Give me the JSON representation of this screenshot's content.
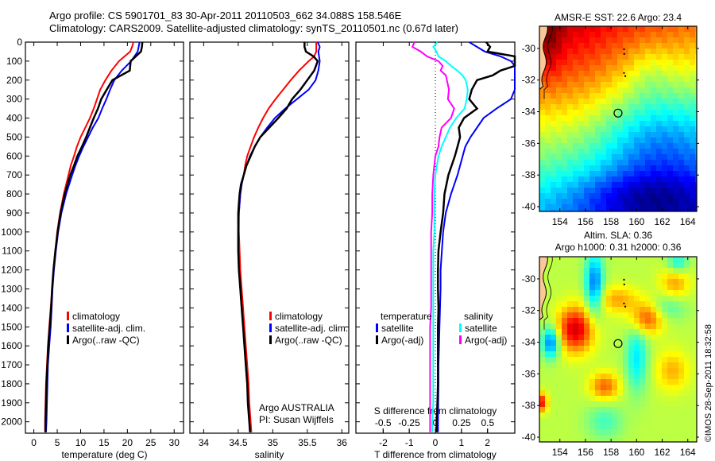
{
  "header": {
    "line1": "Argo profile: CS 5901701_83 30-Apr-2011 20110503_662 34.088S 158.546E",
    "line2": "Climatology: CARS2009. Satellite-adjusted climatology: synTS_20110501.nc (0.67d later)"
  },
  "colors": {
    "climatology": "#ff0000",
    "satellite": "#0000ff",
    "argo": "#000000",
    "sal_satellite": "#00ffff",
    "sal_argo": "#ff00ff",
    "land": "#f9c896"
  },
  "stamp": "©IMOS 28-Sep-2011 18:32:58",
  "chart_data": [
    {
      "id": "temperature",
      "type": "line",
      "xlabel": "temperature (deg C)",
      "ylabel": "",
      "xlim": [
        -1.8,
        32
      ],
      "ylim": [
        2060,
        0
      ],
      "xticks": [
        0,
        5,
        10,
        15,
        20,
        25,
        30
      ],
      "yticks": [
        0,
        100,
        200,
        300,
        400,
        500,
        600,
        700,
        800,
        900,
        1000,
        1100,
        1200,
        1300,
        1400,
        1500,
        1600,
        1700,
        1800,
        1900,
        2000
      ],
      "legend": {
        "placement": "lower-center",
        "entries": [
          {
            "label": "climatology",
            "color_key": "climatology"
          },
          {
            "label": "satellite-adj. clim.",
            "color_key": "satellite"
          },
          {
            "label": "Argo(..raw -QC)",
            "color_key": "argo"
          }
        ]
      },
      "depth": [
        0,
        25,
        50,
        100,
        150,
        200,
        250,
        300,
        350,
        400,
        450,
        500,
        550,
        600,
        650,
        700,
        800,
        900,
        1000,
        1100,
        1200,
        1300,
        1400,
        1500,
        1600,
        1700,
        1800,
        1900,
        2000,
        2055
      ],
      "series": [
        {
          "name": "climatology",
          "color_key": "climatology",
          "values": [
            21.3,
            21.0,
            20.6,
            18.2,
            16.6,
            15.3,
            14.2,
            13.5,
            12.8,
            12.0,
            11.0,
            10.0,
            9.2,
            8.6,
            7.9,
            7.4,
            6.4,
            5.6,
            5.0,
            4.6,
            4.2,
            3.9,
            3.6,
            3.3,
            3.0,
            2.8,
            2.6,
            2.5,
            2.4,
            2.4
          ]
        },
        {
          "name": "satellite-adj. clim.",
          "color_key": "satellite",
          "values": [
            22.6,
            22.4,
            22.2,
            20.8,
            18.8,
            17.2,
            16.3,
            15.5,
            14.6,
            13.8,
            12.6,
            11.6,
            10.6,
            9.7,
            8.9,
            8.2,
            6.9,
            5.9,
            5.2,
            4.7,
            4.3,
            4.0,
            3.8,
            3.6,
            3.3,
            3.0,
            2.9,
            2.8,
            2.7,
            2.6
          ]
        },
        {
          "name": "Argo(..raw -QC)",
          "color_key": "argo",
          "values": [
            23.2,
            23.1,
            22.9,
            20.7,
            20.5,
            16.8,
            15.6,
            14.4,
            13.7,
            12.8,
            12.0,
            11.2,
            10.3,
            9.3,
            8.6,
            7.8,
            6.6,
            5.7,
            5.1,
            4.6,
            4.2,
            3.9,
            3.7,
            3.4,
            3.1,
            2.9,
            2.7,
            2.6,
            2.5,
            2.5
          ]
        }
      ]
    },
    {
      "id": "salinity",
      "type": "line",
      "xlabel": "salinity",
      "xlim": [
        33.8,
        36.1
      ],
      "ylim": [
        2060,
        0
      ],
      "xticks": [
        34,
        34.5,
        35,
        35.5,
        36
      ],
      "xticklabels": [
        "34",
        "34.5",
        "35",
        "35.5",
        "36"
      ],
      "annotation": [
        "Argo AUSTRALIA",
        "PI: Susan Wijffels"
      ],
      "legend": {
        "placement": "lower-right",
        "entries": [
          {
            "label": "climatology",
            "color_key": "climatology"
          },
          {
            "label": "satellite-adj. clim.",
            "color_key": "satellite"
          },
          {
            "label": "Argo(..raw -QC)",
            "color_key": "argo"
          }
        ]
      },
      "depth": [
        0,
        25,
        50,
        75,
        100,
        150,
        200,
        250,
        300,
        350,
        400,
        450,
        500,
        550,
        600,
        650,
        700,
        750,
        800,
        850,
        900,
        1000,
        1100,
        1200,
        1300,
        1400,
        1500,
        1600,
        1700,
        1800,
        1900,
        2000,
        2055
      ],
      "series": [
        {
          "name": "climatology",
          "color_key": "climatology",
          "values": [
            35.63,
            35.63,
            35.63,
            35.6,
            35.52,
            35.38,
            35.26,
            35.15,
            35.04,
            34.94,
            34.86,
            34.79,
            34.73,
            34.68,
            34.63,
            34.6,
            34.58,
            34.55,
            34.53,
            34.52,
            34.51,
            34.51,
            34.52,
            34.53,
            34.55,
            34.57,
            34.59,
            34.61,
            34.63,
            34.65,
            34.66,
            34.68,
            34.69
          ]
        },
        {
          "name": "satellite-adj. clim.",
          "color_key": "satellite",
          "values": [
            35.65,
            35.68,
            35.66,
            35.67,
            35.68,
            35.66,
            35.62,
            35.52,
            35.35,
            35.18,
            35.03,
            34.92,
            34.82,
            34.74,
            34.67,
            34.62,
            34.58,
            34.55,
            34.53,
            34.52,
            34.51,
            34.5,
            34.5,
            34.51,
            34.53,
            34.55,
            34.57,
            34.59,
            34.61,
            34.63,
            34.64,
            34.66,
            34.67
          ]
        },
        {
          "name": "Argo(..raw -QC)",
          "color_key": "argo",
          "values": [
            35.46,
            35.46,
            35.48,
            35.59,
            35.65,
            35.6,
            35.5,
            35.4,
            35.28,
            35.2,
            35.08,
            34.95,
            34.82,
            34.74,
            34.68,
            34.62,
            34.58,
            34.54,
            34.52,
            34.51,
            34.5,
            34.5,
            34.5,
            34.51,
            34.53,
            34.55,
            34.57,
            34.59,
            34.61,
            34.63,
            34.64,
            34.66,
            34.67
          ]
        }
      ]
    },
    {
      "id": "difference",
      "type": "line",
      "xlabel": "T difference from climatology",
      "x2label": "S difference from climatology",
      "xlim": [
        -3.05,
        3.05
      ],
      "x2lim": [
        -0.76,
        0.76
      ],
      "ylim": [
        2060,
        0
      ],
      "xticks": [
        -2,
        -1,
        0,
        1,
        2
      ],
      "xticklabels": [
        "-2",
        "-1",
        "0",
        "1",
        "2"
      ],
      "x2ticks": [
        -0.5,
        -0.25,
        0,
        0.25,
        0.5
      ],
      "x2ticklabels": [
        "-0.5",
        "-0.25",
        "0",
        "0.25",
        "0.5"
      ],
      "legend": {
        "placement": "lower-center",
        "groups": [
          {
            "title": "temperature",
            "entries": [
              {
                "label": "satellite",
                "color_key": "satellite"
              },
              {
                "label": "Argo(-adj)",
                "color_key": "argo"
              }
            ]
          },
          {
            "title": "salinity",
            "entries": [
              {
                "label": "satellite",
                "color_key": "sal_satellite"
              },
              {
                "label": "Argo(-adj)",
                "color_key": "sal_argo"
              }
            ]
          }
        ]
      },
      "depth": [
        0,
        25,
        50,
        75,
        100,
        125,
        150,
        175,
        200,
        250,
        300,
        350,
        400,
        450,
        500,
        550,
        600,
        700,
        800,
        900,
        1000,
        1100,
        1200,
        1300,
        1400,
        1500,
        1600,
        1700,
        1800,
        1900,
        2000,
        2055
      ],
      "series": [
        {
          "name": "temperature satellite",
          "axis": "T",
          "color_key": "satellite",
          "values": [
            1.3,
            1.6,
            1.9,
            2.5,
            2.9,
            3.05,
            3.05,
            3.05,
            3.05,
            3.05,
            2.9,
            2.35,
            1.85,
            1.6,
            1.35,
            1.15,
            1.05,
            0.85,
            0.6,
            0.4,
            0.3,
            0.25,
            0.2,
            0.2,
            0.18,
            0.16,
            0.14,
            0.12,
            0.12,
            0.11,
            0.1,
            0.1
          ]
        },
        {
          "name": "temperature Argo(-adj)",
          "axis": "T",
          "color_key": "argo",
          "values": [
            1.95,
            2.1,
            2.0,
            3.05,
            3.05,
            3.05,
            2.5,
            2.2,
            1.6,
            1.4,
            1.3,
            1.6,
            1.1,
            0.9,
            0.95,
            0.85,
            0.75,
            0.5,
            0.35,
            0.3,
            0.2,
            0.12,
            0.1,
            0.1,
            0.12,
            0.1,
            0.1,
            0.1,
            0.1,
            0.08,
            0.05,
            0.05
          ]
        },
        {
          "name": "salinity satellite",
          "axis": "S",
          "color_key": "sal_satellite",
          "values": [
            0.02,
            -0.02,
            0.01,
            0.03,
            0.1,
            0.15,
            0.21,
            0.26,
            0.29,
            0.31,
            0.3,
            0.28,
            0.2,
            0.14,
            0.1,
            0.06,
            0.03,
            0.0,
            -0.01,
            -0.01,
            -0.01,
            -0.02,
            -0.02,
            -0.02,
            -0.02,
            -0.02,
            -0.02,
            -0.02,
            -0.02,
            -0.02,
            -0.03,
            -0.03
          ]
        },
        {
          "name": "salinity Argo(-adj)",
          "axis": "S",
          "color_key": "sal_argo",
          "values": [
            -0.2,
            -0.22,
            -0.14,
            -0.08,
            0.03,
            0.07,
            0.05,
            0.1,
            0.11,
            0.13,
            0.12,
            0.18,
            0.15,
            0.06,
            0.04,
            0.03,
            0.0,
            -0.02,
            -0.03,
            -0.03,
            -0.04,
            -0.04,
            -0.04,
            -0.04,
            -0.04,
            -0.05,
            -0.05,
            -0.05,
            -0.05,
            -0.05,
            -0.05,
            -0.05
          ]
        }
      ]
    },
    {
      "id": "sst-map",
      "type": "heatmap",
      "title": "AMSR-E SST: 22.6 Argo: 23.4",
      "sst": 22.6,
      "argo": 23.4,
      "xlim": [
        152.4,
        164.7
      ],
      "ylim": [
        -40.3,
        -28.6
      ],
      "xticks": [
        154,
        156,
        158,
        160,
        162,
        164
      ],
      "yticks": [
        -30,
        -32,
        -34,
        -36,
        -38,
        -40
      ],
      "marker": {
        "lon": 158.546,
        "lat": -34.088
      },
      "field": "warm yellow/orange north-west, green/cyan mid, deep blue south"
    },
    {
      "id": "sla-map",
      "type": "heatmap",
      "title": "Altim. SLA: 0.36",
      "subtitle": "Argo h1000: 0.31 h2000: 0.36",
      "sla": 0.36,
      "h1000": 0.31,
      "h2000": 0.36,
      "xlim": [
        152.4,
        164.7
      ],
      "ylim": [
        -40.3,
        -28.6
      ],
      "xticks": [
        154,
        156,
        158,
        160,
        162,
        164
      ],
      "yticks": [
        -30,
        -32,
        -34,
        -36,
        -38,
        -40
      ],
      "marker": {
        "lon": 158.546,
        "lat": -34.088
      },
      "field": "eddy field with strong warm-core eddy near 155E 33S and cyan lows near 156.5E 30S and 153E 34S"
    }
  ]
}
